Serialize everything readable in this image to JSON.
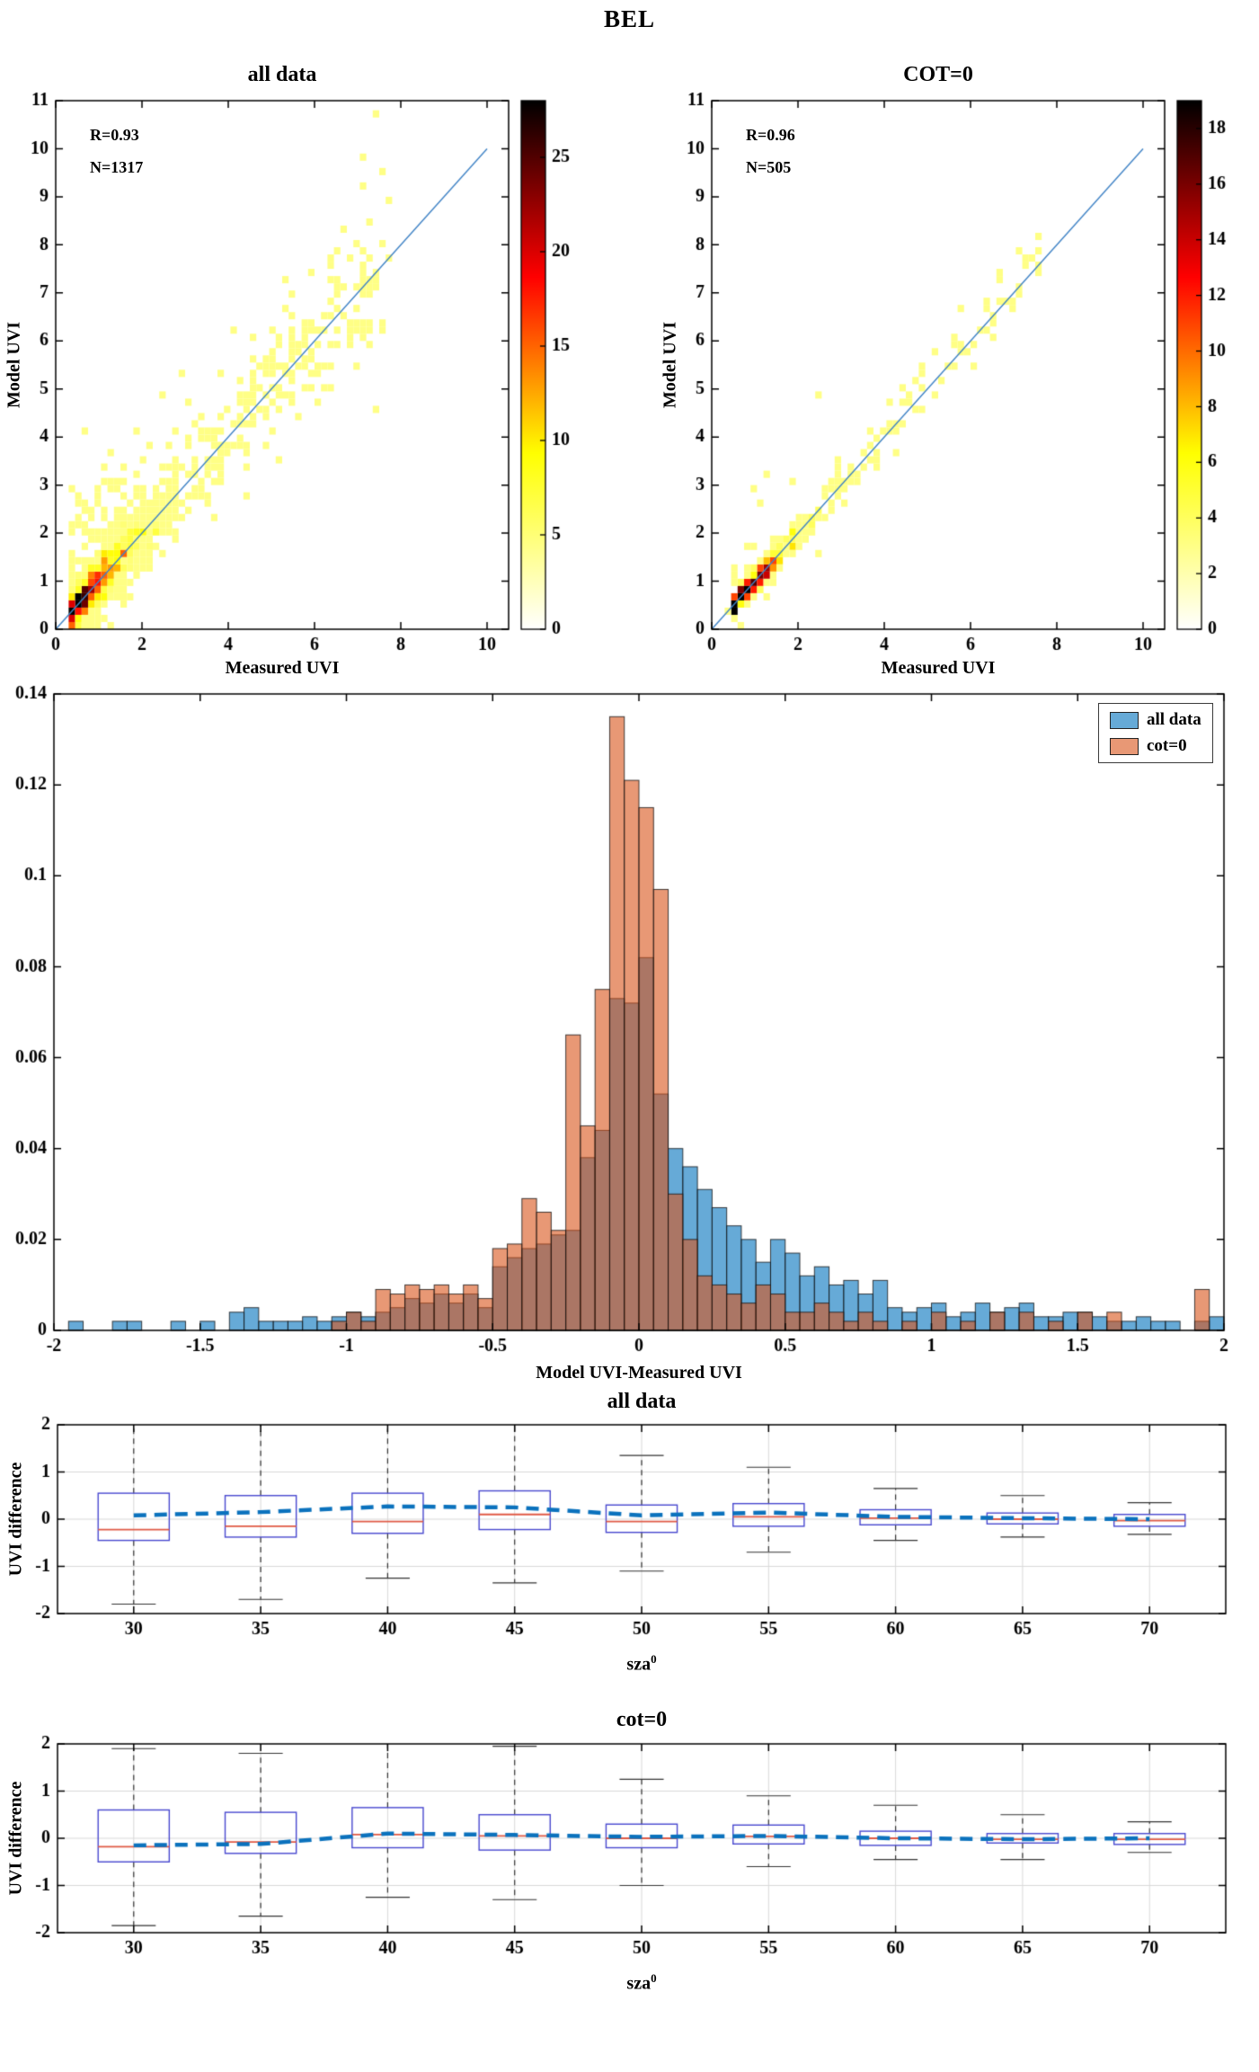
{
  "figure": {
    "title": "BEL"
  },
  "chart_data": [
    {
      "id": "scatter_all_data",
      "type": "scatter",
      "title": "all data",
      "xlabel": "Measured UVI",
      "ylabel": "Model UVI",
      "xlim": [
        0,
        10.5
      ],
      "ylim": [
        0,
        11
      ],
      "xtick_values": [
        0,
        2,
        4,
        6,
        8,
        10
      ],
      "xtick_labels": [
        "0",
        "2",
        "4",
        "6",
        "8",
        "10"
      ],
      "ytick_values": [
        0,
        1,
        2,
        3,
        4,
        5,
        6,
        7,
        8,
        9,
        10,
        11
      ],
      "ytick_labels": [
        "0",
        "1",
        "2",
        "3",
        "4",
        "5",
        "6",
        "7",
        "8",
        "9",
        "10",
        "11"
      ],
      "grid": false,
      "stats": {
        "r_label": "R=0.93",
        "n_label": "N=1317",
        "r": 0.93,
        "n": 1317
      },
      "identity_line": {
        "x": [
          0,
          10
        ],
        "y": [
          0,
          10
        ],
        "color": "#3f83c6"
      },
      "colorbar": {
        "max": 28,
        "tick_values": [
          0,
          5,
          10,
          15,
          20,
          25
        ],
        "tick_labels": [
          "0",
          "5",
          "10",
          "15",
          "20",
          "25"
        ],
        "colormap": "white-yellow-red-black"
      },
      "points": {
        "count": 1317,
        "seed": 7,
        "core_frac": 0.68,
        "core_offset": 0.35,
        "core_scale": 0.9,
        "spread_min": 0.3,
        "spread_range": 7.4,
        "noise_scale": 0.33,
        "noise_base": 0.45,
        "noise_slope": 0.3125,
        "outlier_up_frac": 0.13,
        "outlier_up_scale": 1.1,
        "outlier_down_frac": 0.04,
        "outlier_down_scale": 0.8,
        "bin_size": 0.15
      }
    },
    {
      "id": "scatter_cot0",
      "type": "scatter",
      "title": "COT=0",
      "xlabel": "Measured UVI",
      "ylabel": "Model UVI",
      "xlim": [
        0,
        10.5
      ],
      "ylim": [
        0,
        11
      ],
      "xtick_values": [
        0,
        2,
        4,
        6,
        8,
        10
      ],
      "xtick_labels": [
        "0",
        "2",
        "4",
        "6",
        "8",
        "10"
      ],
      "ytick_values": [
        0,
        1,
        2,
        3,
        4,
        5,
        6,
        7,
        8,
        9,
        10,
        11
      ],
      "ytick_labels": [
        "0",
        "1",
        "2",
        "3",
        "4",
        "5",
        "6",
        "7",
        "8",
        "9",
        "10",
        "11"
      ],
      "grid": false,
      "stats": {
        "r_label": "R=0.96",
        "n_label": "N=505",
        "r": 0.96,
        "n": 505
      },
      "identity_line": {
        "x": [
          0,
          10
        ],
        "y": [
          0,
          10
        ],
        "color": "#3f83c6"
      },
      "colorbar": {
        "max": 19,
        "tick_values": [
          0,
          2,
          4,
          6,
          8,
          10,
          12,
          14,
          16,
          18
        ],
        "tick_labels": [
          "0",
          "2",
          "4",
          "6",
          "8",
          "10",
          "12",
          "14",
          "16",
          "18"
        ],
        "colormap": "white-yellow-red-black"
      },
      "points": {
        "count": 505,
        "seed": 11,
        "core_frac": 0.7,
        "core_offset": 0.45,
        "core_scale": 0.85,
        "spread_min": 0.4,
        "spread_range": 7.3,
        "noise_scale": 0.16,
        "noise_base": 0.45,
        "noise_slope": 0.3125,
        "outlier_up_frac": 0.05,
        "outlier_up_scale": 1.3,
        "outlier_down_frac": 0.02,
        "outlier_down_scale": 0.6,
        "bin_size": 0.15
      }
    },
    {
      "id": "difference_histogram",
      "type": "bar",
      "title": "",
      "xlabel": "Model UVI-Measured UVI",
      "ylabel": "",
      "xlim": [
        -2,
        2
      ],
      "ylim": [
        0,
        0.14
      ],
      "xtick_values": [
        -2,
        -1.5,
        -1,
        -0.5,
        0,
        0.5,
        1,
        1.5,
        2
      ],
      "xtick_labels": [
        "-2",
        "-1.5",
        "-1",
        "-0.5",
        "0",
        "0.5",
        "1",
        "1.5",
        "2"
      ],
      "ytick_values": [
        0,
        0.02,
        0.04,
        0.06,
        0.08,
        0.1,
        0.12,
        0.14
      ],
      "ytick_labels": [
        "0",
        "0.02",
        "0.04",
        "0.06",
        "0.08",
        "0.1",
        "0.12",
        "0.14"
      ],
      "grid": false,
      "bin_start": -2,
      "bin_width": 0.05,
      "legend": [
        {
          "label": "all data",
          "color": "rgba(0,114,189,0.6)",
          "edge": "rgba(20,20,20,0.8)"
        },
        {
          "label": "cot=0",
          "color": "rgba(217,83,25,0.6)",
          "edge": "rgba(20,20,20,0.8)"
        }
      ],
      "legend_position": "northeast",
      "series": [
        {
          "name": "all data",
          "values": [
            0,
            0.002,
            0,
            0,
            0.002,
            0.002,
            0,
            0,
            0.002,
            0,
            0.002,
            0,
            0.004,
            0.005,
            0.002,
            0.002,
            0.002,
            0.003,
            0.002,
            0.003,
            0.004,
            0.003,
            0.004,
            0.005,
            0.007,
            0.006,
            0.008,
            0.006,
            0.008,
            0.005,
            0.014,
            0.016,
            0.018,
            0.019,
            0.021,
            0.022,
            0.038,
            0.044,
            0.073,
            0.072,
            0.082,
            0.052,
            0.04,
            0.036,
            0.031,
            0.027,
            0.023,
            0.02,
            0.015,
            0.02,
            0.017,
            0.012,
            0.014,
            0.01,
            0.011,
            0.008,
            0.011,
            0.005,
            0.004,
            0.005,
            0.006,
            0.003,
            0.004,
            0.006,
            0.004,
            0.005,
            0.006,
            0.003,
            0.003,
            0.004,
            0.004,
            0.003,
            0.002,
            0.002,
            0.003,
            0.002,
            0.002,
            0,
            0.002,
            0.003
          ]
        },
        {
          "name": "cot=0",
          "values": [
            0,
            0,
            0,
            0,
            0,
            0,
            0,
            0,
            0,
            0,
            0,
            0,
            0,
            0,
            0,
            0,
            0,
            0,
            0,
            0.002,
            0.004,
            0.002,
            0.009,
            0.008,
            0.01,
            0.009,
            0.01,
            0.008,
            0.01,
            0.007,
            0.018,
            0.019,
            0.029,
            0.026,
            0.022,
            0.065,
            0.045,
            0.075,
            0.135,
            0.121,
            0.115,
            0.097,
            0.03,
            0.02,
            0.012,
            0.01,
            0.008,
            0.006,
            0.01,
            0.008,
            0.004,
            0.004,
            0.006,
            0.004,
            0.002,
            0.004,
            0.002,
            0,
            0.002,
            0,
            0.004,
            0,
            0.002,
            0,
            0.004,
            0,
            0.004,
            0,
            0.002,
            0,
            0.004,
            0,
            0.004,
            0,
            0,
            0,
            0,
            0,
            0.009,
            0
          ]
        }
      ]
    },
    {
      "id": "boxplot_all_data",
      "type": "boxplot",
      "title": "all data",
      "xlabel": "sza",
      "xlabel_sup": "0",
      "ylabel": "UVI difference",
      "xlim": [
        27,
        73
      ],
      "ylim": [
        -2,
        2
      ],
      "xtick_values": [
        30,
        35,
        40,
        45,
        50,
        55,
        60,
        65,
        70
      ],
      "xtick_labels": [
        "30",
        "35",
        "40",
        "45",
        "50",
        "55",
        "60",
        "65",
        "70"
      ],
      "ytick_values": [
        -2,
        -1,
        0,
        1,
        2
      ],
      "ytick_labels": [
        "-2",
        "-1",
        "0",
        "1",
        "2"
      ],
      "grid": true,
      "grid_color": "#d9d9d9",
      "box_half_width": 1.4,
      "box_color": "#4848cf",
      "median_color": "#e05a45",
      "whisker_color": "#333333",
      "mean_line": {
        "color": "#0b72bd",
        "width": 4.5,
        "dash": [
          14,
          9
        ]
      },
      "boxes": [
        {
          "x": 30,
          "q1": -0.45,
          "median": -0.22,
          "q3": 0.55,
          "whisker_low": -1.8,
          "whisker_high": 2.2,
          "mean": 0.08
        },
        {
          "x": 35,
          "q1": -0.38,
          "median": -0.15,
          "q3": 0.5,
          "whisker_low": -1.7,
          "whisker_high": 2.2,
          "mean": 0.15
        },
        {
          "x": 40,
          "q1": -0.3,
          "median": -0.05,
          "q3": 0.55,
          "whisker_low": -1.25,
          "whisker_high": 2.2,
          "mean": 0.27
        },
        {
          "x": 45,
          "q1": -0.22,
          "median": 0.1,
          "q3": 0.6,
          "whisker_low": -1.35,
          "whisker_high": 2.1,
          "mean": 0.25
        },
        {
          "x": 50,
          "q1": -0.28,
          "median": -0.05,
          "q3": 0.3,
          "whisker_low": -1.1,
          "whisker_high": 1.35,
          "mean": 0.08
        },
        {
          "x": 55,
          "q1": -0.15,
          "median": 0.05,
          "q3": 0.33,
          "whisker_low": -0.7,
          "whisker_high": 1.1,
          "mean": 0.14
        },
        {
          "x": 60,
          "q1": -0.12,
          "median": 0.02,
          "q3": 0.2,
          "whisker_low": -0.45,
          "whisker_high": 0.65,
          "mean": 0.05
        },
        {
          "x": 65,
          "q1": -0.1,
          "median": 0,
          "q3": 0.13,
          "whisker_low": -0.38,
          "whisker_high": 0.5,
          "mean": 0.02
        },
        {
          "x": 70,
          "q1": -0.15,
          "median": -0.03,
          "q3": 0.1,
          "whisker_low": -0.32,
          "whisker_high": 0.35,
          "mean": 0
        }
      ]
    },
    {
      "id": "boxplot_cot0",
      "type": "boxplot",
      "title": "cot=0",
      "xlabel": "sza",
      "xlabel_sup": "0",
      "ylabel": "UVI difference",
      "xlim": [
        27,
        73
      ],
      "ylim": [
        -2,
        2
      ],
      "xtick_values": [
        30,
        35,
        40,
        45,
        50,
        55,
        60,
        65,
        70
      ],
      "xtick_labels": [
        "30",
        "35",
        "40",
        "45",
        "50",
        "55",
        "60",
        "65",
        "70"
      ],
      "ytick_values": [
        -2,
        -1,
        0,
        1,
        2
      ],
      "ytick_labels": [
        "-2",
        "-1",
        "0",
        "1",
        "2"
      ],
      "grid": true,
      "grid_color": "#d9d9d9",
      "box_half_width": 1.4,
      "box_color": "#4848cf",
      "median_color": "#e05a45",
      "whisker_color": "#333333",
      "mean_line": {
        "color": "#0b72bd",
        "width": 4.5,
        "dash": [
          14,
          9
        ]
      },
      "boxes": [
        {
          "x": 30,
          "q1": -0.5,
          "median": -0.18,
          "q3": 0.6,
          "whisker_low": -1.85,
          "whisker_high": 1.9,
          "mean": -0.15
        },
        {
          "x": 35,
          "q1": -0.32,
          "median": -0.08,
          "q3": 0.55,
          "whisker_low": -1.65,
          "whisker_high": 1.8,
          "mean": -0.12
        },
        {
          "x": 40,
          "q1": -0.2,
          "median": 0.08,
          "q3": 0.65,
          "whisker_low": -1.25,
          "whisker_high": 2.15,
          "mean": 0.1
        },
        {
          "x": 45,
          "q1": -0.25,
          "median": 0.05,
          "q3": 0.5,
          "whisker_low": -1.3,
          "whisker_high": 1.95,
          "mean": 0.07
        },
        {
          "x": 50,
          "q1": -0.2,
          "median": 0,
          "q3": 0.3,
          "whisker_low": -1,
          "whisker_high": 1.25,
          "mean": 0.03
        },
        {
          "x": 55,
          "q1": -0.12,
          "median": 0.04,
          "q3": 0.28,
          "whisker_low": -0.6,
          "whisker_high": 0.9,
          "mean": 0.05
        },
        {
          "x": 60,
          "q1": -0.15,
          "median": 0,
          "q3": 0.15,
          "whisker_low": -0.45,
          "whisker_high": 0.7,
          "mean": 0
        },
        {
          "x": 65,
          "q1": -0.1,
          "median": -0.02,
          "q3": 0.1,
          "whisker_low": -0.45,
          "whisker_high": 0.5,
          "mean": -0.02
        },
        {
          "x": 70,
          "q1": -0.13,
          "median": -0.02,
          "q3": 0.1,
          "whisker_low": -0.3,
          "whisker_high": 0.35,
          "mean": 0
        }
      ]
    }
  ]
}
